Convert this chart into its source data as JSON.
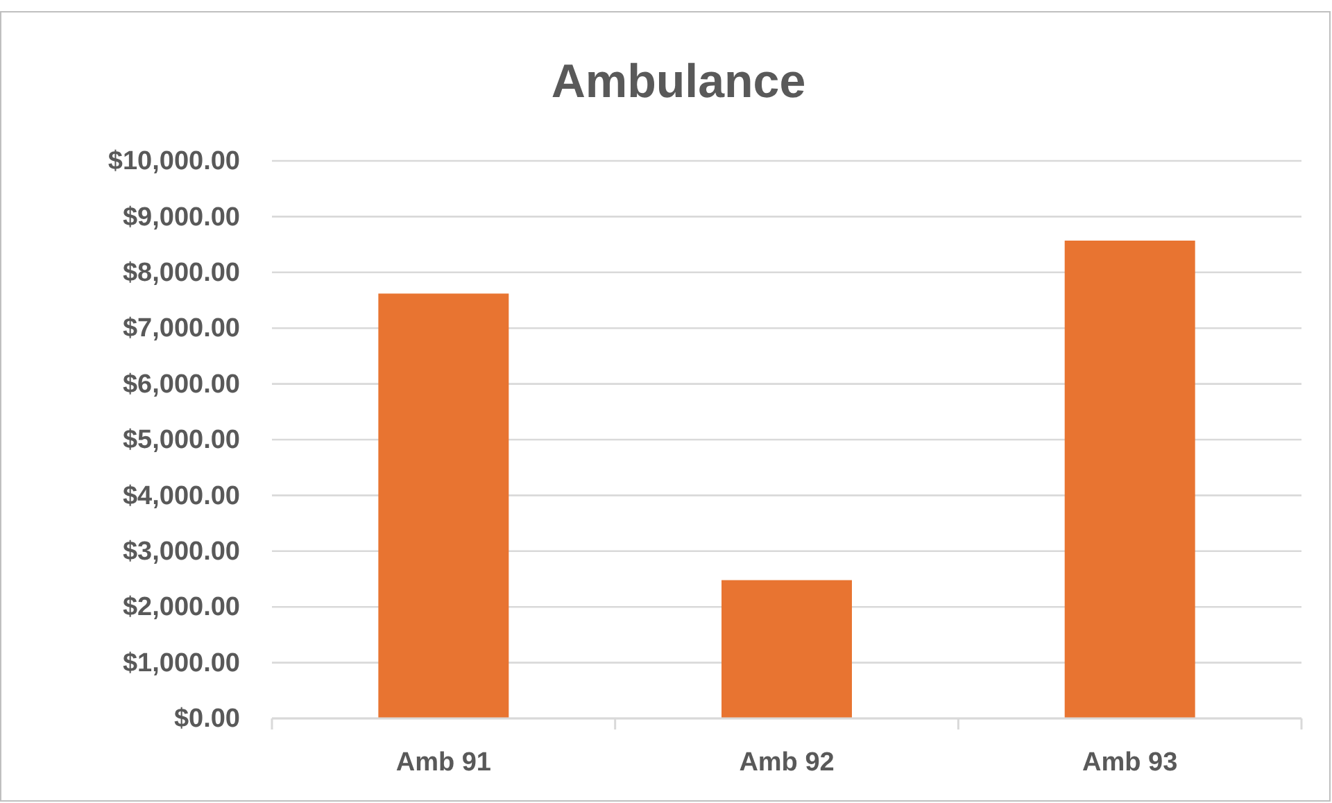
{
  "chart_data": {
    "type": "bar",
    "title": "Ambulance",
    "categories": [
      "Amb 91",
      "Amb 92",
      "Amb 93"
    ],
    "values": [
      7620,
      2480,
      8570
    ],
    "color": "#e87431",
    "ylim": [
      0,
      10000
    ],
    "yticks": [
      {
        "value": 0,
        "label": "$0.00"
      },
      {
        "value": 1000,
        "label": "$1,000.00"
      },
      {
        "value": 2000,
        "label": "$2,000.00"
      },
      {
        "value": 3000,
        "label": "$3,000.00"
      },
      {
        "value": 4000,
        "label": "$4,000.00"
      },
      {
        "value": 5000,
        "label": "$5,000.00"
      },
      {
        "value": 6000,
        "label": "$6,000.00"
      },
      {
        "value": 7000,
        "label": "$7,000.00"
      },
      {
        "value": 8000,
        "label": "$8,000.00"
      },
      {
        "value": 9000,
        "label": "$9,000.00"
      },
      {
        "value": 10000,
        "label": "$10,000.00"
      }
    ],
    "grid": "y"
  }
}
